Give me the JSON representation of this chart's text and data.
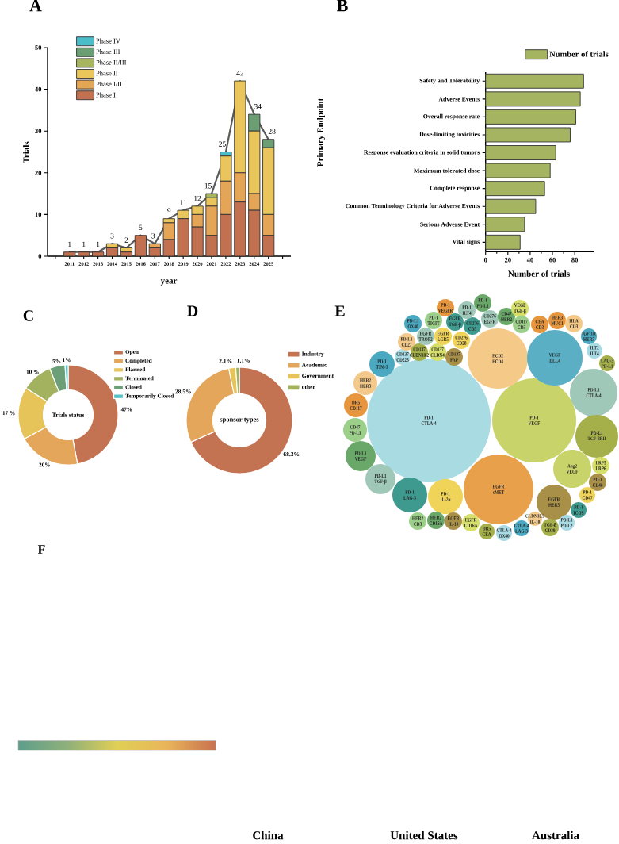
{
  "chart_data": [
    {
      "type": "bar",
      "title": "A",
      "xlabel": "year",
      "ylabel": "Trials",
      "stacked": true,
      "legend": "top left",
      "ylim": [
        0,
        50
      ],
      "yticks": [
        0,
        10,
        20,
        30,
        40,
        50
      ],
      "categories": [
        "2011",
        "2012",
        "2013",
        "2014",
        "2015",
        "2016",
        "2017",
        "2018",
        "2019",
        "2020",
        "2021",
        "2022",
        "2023",
        "2024",
        "2025"
      ],
      "series": [
        {
          "name": "Phase I",
          "color": "#c1714f",
          "values": [
            1,
            1,
            1,
            2,
            1,
            5,
            2,
            4,
            9,
            7,
            5,
            10,
            13,
            11,
            5
          ]
        },
        {
          "name": "Phase I/II",
          "color": "#e5a557",
          "values": [
            0,
            0,
            0,
            0,
            0,
            0,
            1,
            4,
            0,
            3,
            7,
            8,
            7,
            4,
            5
          ]
        },
        {
          "name": "Phase II",
          "color": "#e9c55b",
          "values": [
            0,
            0,
            0,
            1,
            1,
            0,
            0,
            1,
            2,
            2,
            2,
            6,
            22,
            15,
            16
          ]
        },
        {
          "name": "Phase II/III",
          "color": "#a7b560",
          "values": [
            0,
            0,
            0,
            0,
            0,
            0,
            0,
            0,
            0,
            0,
            1,
            0,
            0,
            0,
            0
          ]
        },
        {
          "name": "Phase III",
          "color": "#6b9f73",
          "values": [
            0,
            0,
            0,
            0,
            0,
            0,
            0,
            0,
            0,
            0,
            0,
            0,
            0,
            4,
            2
          ]
        },
        {
          "name": "Phase IV",
          "color": "#4bbdc9",
          "values": [
            0,
            0,
            0,
            0,
            0,
            0,
            0,
            0,
            0,
            0,
            0,
            1,
            0,
            0,
            0
          ]
        },
        {
          "type": "line",
          "color": "#5a5a5a",
          "values": [
            1,
            1,
            1,
            3,
            2,
            5,
            3,
            9,
            11,
            12,
            15,
            25,
            42,
            34,
            28
          ],
          "value_labels": [
            "1",
            "1",
            "1",
            "3",
            "2",
            "5",
            "3",
            "9",
            "11",
            "12",
            "15",
            "25",
            "42",
            "34",
            "28"
          ]
        }
      ]
    },
    {
      "type": "bar",
      "title": "B",
      "orientation": "horizontal",
      "xlabel": "Number of trials",
      "ylabel": "Primary Endpoint",
      "legend": "top right",
      "xlim": [
        0,
        97
      ],
      "xticks": [
        0,
        20,
        40,
        60,
        80
      ],
      "categories": [
        "Safety and Tolerability",
        "Adverse Events",
        "Overall response rate",
        "Dose-limiting toxicities",
        "Response evaluation criteria in solid tumors",
        "Maximum tolerated dose",
        "Complete response",
        "Common Terminology Criteria for Adverse Events",
        "Serious Adverse Event",
        "Vital signs"
      ],
      "series": [
        {
          "name": "Number of trials",
          "color": "#a5b461",
          "values": [
            88,
            85,
            81,
            76,
            63,
            58,
            53,
            45,
            35,
            31
          ]
        }
      ]
    },
    {
      "type": "donut",
      "title": "C",
      "legend": "top right",
      "annotations": [
        "Trials status"
      ],
      "categories": [
        "Open",
        "Completed",
        "Planned",
        "Terminated",
        "Closed",
        "Temporarily Closed"
      ],
      "values": [
        47,
        20,
        17,
        10,
        5,
        1
      ],
      "colors": [
        "#c47352",
        "#e3a65a",
        "#e6c45a",
        "#a3b25f",
        "#6c9f77",
        "#4fc3c8"
      ],
      "value_labels": [
        "47%",
        "20%",
        "17 %",
        "10 %",
        "5%",
        "1%"
      ]
    },
    {
      "type": "donut",
      "title": "D",
      "legend": "top right",
      "annotations": [
        "sponsor types"
      ],
      "categories": [
        "Industry",
        "Academic",
        "Government",
        "other"
      ],
      "values": [
        68.3,
        28.5,
        2.1,
        1.1
      ],
      "colors": [
        "#c47352",
        "#e3a65a",
        "#e6c45a",
        "#a3b25f"
      ],
      "value_labels": [
        "68.3%",
        "28.5%",
        "2.1%",
        "1.1%"
      ]
    },
    {
      "type": "other",
      "title": "E",
      "categories": [
        "PD-1 CTLA-4",
        "PD-1 VEGF",
        "EGFR cMET",
        "ECD2 ECD4",
        "VEGF DLL4",
        "PD-L1 CTLA-4",
        "PD-L1 TGF-βRII",
        "Ang2 VEGF",
        "EGFR HER3",
        "PD-1 LAG-3",
        "PD-1 IL-2α",
        "PD-L1 TGF-β",
        "PD-L1 VEGF",
        "CD47 PD-L1",
        "DR5 CD117",
        "HER2 HER3",
        "PD-1 TIM-3",
        "CD137 CD228",
        "PD-L1 CD27",
        "CD137 CLDN18.2",
        "CD137 CLDN4",
        "CD137 FAP",
        "EGFR TROP2",
        "EGFR LGR5",
        "CD276 CD28",
        "PD-L1 OX40",
        "PD-1 TIGIT",
        "EGFR TGF-β",
        "CD276 CD3",
        "PD-1 VEGFR",
        "PD-1 ILT4",
        "PD-1 PD-L1",
        "CD276 EGFR",
        "CD47 HER2",
        "VEGF TGF-β",
        "CD117 CD3",
        "CEA CD3",
        "HER3 MUC1",
        "HLA CD3",
        "IGF-1R HER3",
        "ILT2 ILT4",
        "LAG-3 PD-L1",
        "LRP5 LRP6",
        "PD-1 CD40",
        "PD-1 CD47",
        "PD-1 ICOS",
        "PD-L1 PD-L2",
        "TGF-β CD39",
        "CLDN18.2 IL-10",
        "CTLA-4 LAG-3",
        "CTLA-4 OX40",
        "DR5 CEA",
        "EGFR CD16A",
        "EGFR IL-10",
        "HER2 CD16A",
        "HER2 CD3"
      ],
      "colors": [
        "#a9dbe3",
        "#c8d36a",
        "#e9a04a",
        "#f5ca88",
        "#5aafc4",
        "#9fc8b9",
        "#a5b04a",
        "#c8d36a",
        "#a99048",
        "#3e9a8f",
        "#f0d45a",
        "#9fc8b9",
        "#6aa86a",
        "#9ccf8a",
        "#e8963d",
        "#f2c98a",
        "#4aa8c0",
        "#a8dbe4",
        "#f2c98a",
        "#a5b04a",
        "#d6df6a",
        "#a99048",
        "#9fc8b9",
        "#f0d45a",
        "#f0d45a",
        "#4aa8c0",
        "#9ccf8a",
        "#3e9a8f",
        "#3e9a8f",
        "#e8963d",
        "#9fc8b9",
        "#6aa86a",
        "#9fc8b9",
        "#6aa86a",
        "#d6df6a",
        "#9ccf8a",
        "#e8963d",
        "#e8963d",
        "#f5ca88",
        "#4aa8c0",
        "#a8dbe4",
        "#a5b04a",
        "#d6df6a",
        "#a99048",
        "#f0d45a",
        "#3e9a8f",
        "#a8dbe4",
        "#a5b04a",
        "#f2c98a",
        "#4aa8c0",
        "#a8dbe4",
        "#a5b04a",
        "#d6df6a",
        "#a99048",
        "#6aa86a",
        "#9ccf8a"
      ]
    },
    {
      "type": "other",
      "title": "F",
      "annotations": [
        "China",
        "United States",
        "Australia"
      ]
    }
  ]
}
